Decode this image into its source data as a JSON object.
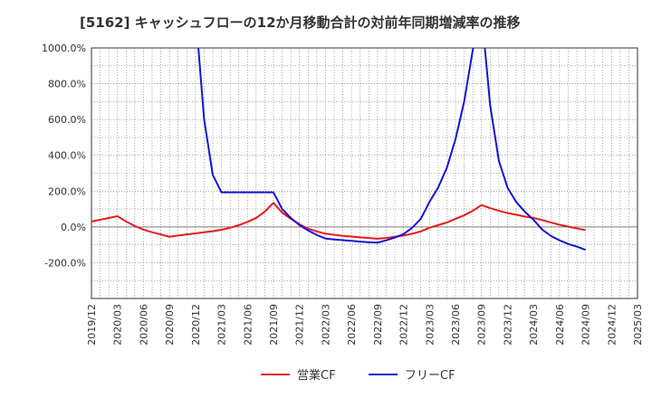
{
  "chart_data": {
    "type": "line",
    "title": "[5162]  キャッシュフローの12か月移動合計の対前年同期増減率の推移",
    "xlabel": "",
    "ylabel": "",
    "ylim": [
      -400,
      1000
    ],
    "ytick_values": [
      1000,
      800,
      600,
      400,
      200,
      0,
      -200
    ],
    "ytick_labels": [
      "1000.0%",
      "800.0%",
      "600.0%",
      "400.0%",
      "200.0%",
      "0.0%",
      "-200.0%"
    ],
    "x_start": "2019-12",
    "x_end": "2025-03",
    "xtick_labels": [
      "2019/12",
      "2020/03",
      "2020/06",
      "2020/09",
      "2020/12",
      "2021/03",
      "2021/06",
      "2021/09",
      "2021/12",
      "2022/03",
      "2022/06",
      "2022/09",
      "2022/12",
      "2023/03",
      "2023/06",
      "2023/09",
      "2023/12",
      "2024/03",
      "2024/06",
      "2024/09",
      "2024/12",
      "2025/03"
    ],
    "grid": true,
    "legend_position": "bottom",
    "series": [
      {
        "name": "営業CF",
        "color": "#e8191e",
        "points": [
          [
            "2019-12",
            30
          ],
          [
            "2020-01",
            40
          ],
          [
            "2020-02",
            50
          ],
          [
            "2020-03",
            60
          ],
          [
            "2020-04",
            30
          ],
          [
            "2020-05",
            5
          ],
          [
            "2020-06",
            -15
          ],
          [
            "2020-07",
            -30
          ],
          [
            "2020-08",
            -42
          ],
          [
            "2020-09",
            -55
          ],
          [
            "2020-10",
            -48
          ],
          [
            "2020-11",
            -42
          ],
          [
            "2020-12",
            -36
          ],
          [
            "2021-01",
            -30
          ],
          [
            "2021-02",
            -24
          ],
          [
            "2021-03",
            -16
          ],
          [
            "2021-04",
            -5
          ],
          [
            "2021-05",
            10
          ],
          [
            "2021-06",
            28
          ],
          [
            "2021-07",
            50
          ],
          [
            "2021-08",
            85
          ],
          [
            "2021-09",
            135
          ],
          [
            "2021-10",
            80
          ],
          [
            "2021-11",
            45
          ],
          [
            "2021-12",
            15
          ],
          [
            "2022-01",
            -10
          ],
          [
            "2022-02",
            -25
          ],
          [
            "2022-03",
            -38
          ],
          [
            "2022-04",
            -44
          ],
          [
            "2022-05",
            -50
          ],
          [
            "2022-06",
            -54
          ],
          [
            "2022-07",
            -58
          ],
          [
            "2022-08",
            -62
          ],
          [
            "2022-09",
            -66
          ],
          [
            "2022-10",
            -62
          ],
          [
            "2022-11",
            -55
          ],
          [
            "2022-12",
            -48
          ],
          [
            "2023-01",
            -38
          ],
          [
            "2023-02",
            -25
          ],
          [
            "2023-03",
            -5
          ],
          [
            "2023-04",
            10
          ],
          [
            "2023-05",
            25
          ],
          [
            "2023-06",
            45
          ],
          [
            "2023-07",
            65
          ],
          [
            "2023-08",
            90
          ],
          [
            "2023-09",
            122
          ],
          [
            "2023-10",
            105
          ],
          [
            "2023-11",
            90
          ],
          [
            "2023-12",
            78
          ],
          [
            "2024-01",
            68
          ],
          [
            "2024-02",
            58
          ],
          [
            "2024-03",
            50
          ],
          [
            "2024-04",
            38
          ],
          [
            "2024-05",
            25
          ],
          [
            "2024-06",
            12
          ],
          [
            "2024-07",
            2
          ],
          [
            "2024-08",
            -8
          ],
          [
            "2024-09",
            -18
          ]
        ]
      },
      {
        "name": "フリーCF",
        "color": "#1414d2",
        "points": [
          [
            "2020-12",
            1200
          ],
          [
            "2021-01",
            600
          ],
          [
            "2021-02",
            290
          ],
          [
            "2021-03",
            193
          ],
          [
            "2021-04",
            193
          ],
          [
            "2021-05",
            193
          ],
          [
            "2021-06",
            193
          ],
          [
            "2021-07",
            193
          ],
          [
            "2021-08",
            193
          ],
          [
            "2021-09",
            193
          ],
          [
            "2021-10",
            100
          ],
          [
            "2021-11",
            50
          ],
          [
            "2021-12",
            10
          ],
          [
            "2022-01",
            -20
          ],
          [
            "2022-02",
            -45
          ],
          [
            "2022-03",
            -65
          ],
          [
            "2022-04",
            -70
          ],
          [
            "2022-05",
            -74
          ],
          [
            "2022-06",
            -78
          ],
          [
            "2022-07",
            -82
          ],
          [
            "2022-08",
            -86
          ],
          [
            "2022-09",
            -88
          ],
          [
            "2022-10",
            -75
          ],
          [
            "2022-11",
            -60
          ],
          [
            "2022-12",
            -40
          ],
          [
            "2023-01",
            -5
          ],
          [
            "2023-02",
            45
          ],
          [
            "2023-03",
            140
          ],
          [
            "2023-04",
            220
          ],
          [
            "2023-05",
            330
          ],
          [
            "2023-06",
            490
          ],
          [
            "2023-07",
            700
          ],
          [
            "2023-08",
            990
          ],
          [
            "2023-09",
            1200
          ],
          [
            "2023-10",
            680
          ],
          [
            "2023-11",
            370
          ],
          [
            "2023-12",
            220
          ],
          [
            "2024-01",
            140
          ],
          [
            "2024-02",
            85
          ],
          [
            "2024-03",
            40
          ],
          [
            "2024-04",
            -15
          ],
          [
            "2024-05",
            -50
          ],
          [
            "2024-06",
            -75
          ],
          [
            "2024-07",
            -95
          ],
          [
            "2024-08",
            -110
          ],
          [
            "2024-09",
            -128
          ]
        ]
      }
    ]
  }
}
